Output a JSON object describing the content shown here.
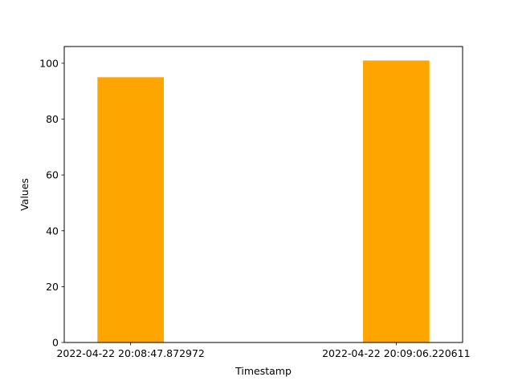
{
  "chart_data": {
    "type": "bar",
    "categories": [
      "2022-04-22 20:08:47.872972",
      "2022-04-22 20:09:06.220611"
    ],
    "values": [
      95,
      101
    ],
    "title": "",
    "xlabel": "Timestamp",
    "ylabel": "Values",
    "ylim": [
      0,
      106
    ],
    "yticks": [
      0,
      20,
      40,
      60,
      80,
      100
    ],
    "bar_color": "#ffa500",
    "grid": false
  }
}
